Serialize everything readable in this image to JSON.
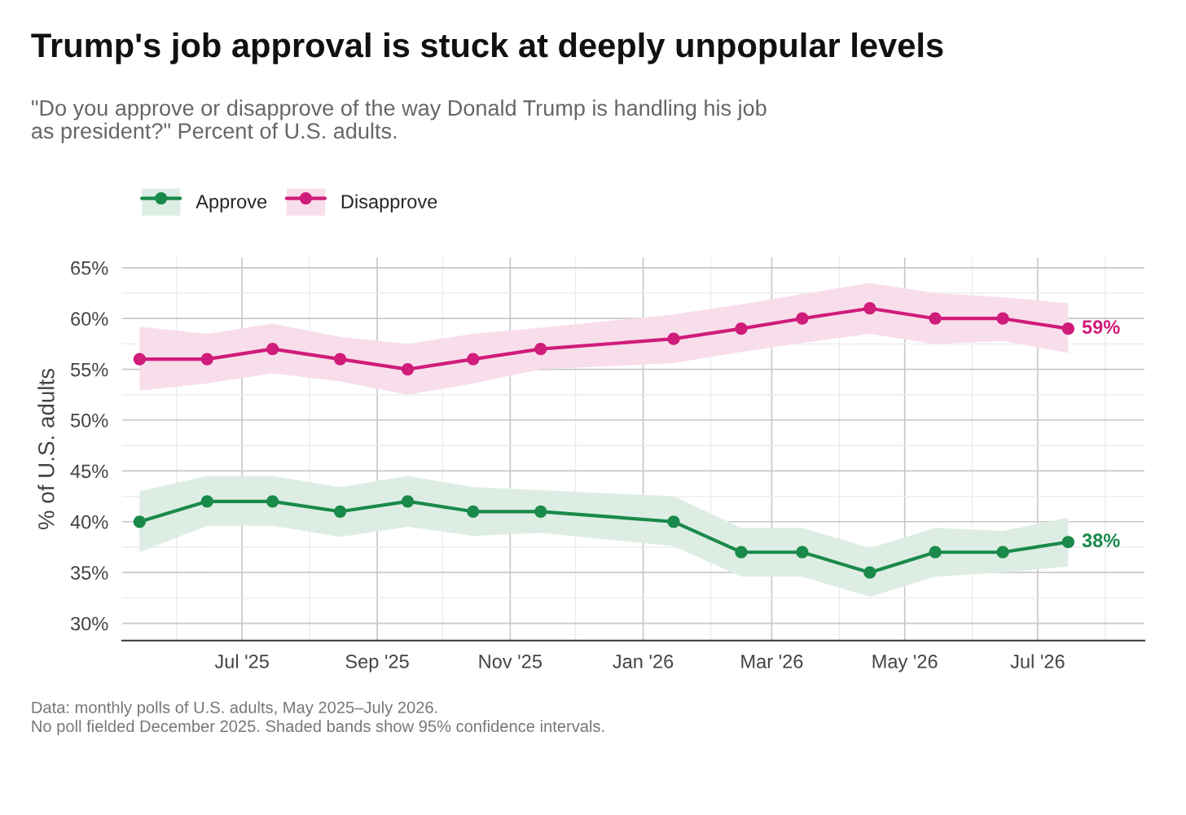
{
  "chart_data": {
    "type": "line",
    "title": "Trump's job approval is stuck at deeply unpopular levels",
    "subtitle": "\"Do you approve or disapprove of the way Donald Trump is handling his job\nas president?\" Percent of U.S. adults.",
    "ylabel": "% of U.S. adults",
    "x": [
      "2025-05-15",
      "2025-06-15",
      "2025-07-15",
      "2025-08-15",
      "2025-09-15",
      "2025-10-15",
      "2025-11-15",
      "2026-01-15",
      "2026-02-15",
      "2026-03-15",
      "2026-04-15",
      "2026-05-15",
      "2026-06-15",
      "2026-07-15"
    ],
    "series": [
      {
        "name": "Approve",
        "color": "#1a8a4a",
        "values": [
          40,
          42,
          42,
          41,
          42,
          41,
          41,
          40,
          37,
          37,
          35,
          37,
          37,
          38
        ],
        "lower": [
          37.0,
          39.6,
          39.6,
          38.5,
          39.5,
          38.6,
          38.9,
          37.6,
          34.6,
          34.6,
          32.6,
          34.6,
          35.0,
          35.6
        ],
        "upper": [
          43.0,
          44.5,
          44.5,
          43.4,
          44.5,
          43.4,
          43.1,
          42.5,
          39.4,
          39.4,
          37.4,
          39.4,
          39.1,
          40.4
        ],
        "value_labels": [
          null,
          null,
          null,
          null,
          null,
          null,
          null,
          null,
          null,
          null,
          null,
          null,
          null,
          "38%"
        ]
      },
      {
        "name": "Disapprove",
        "color": "#d01c7b",
        "values": [
          56,
          56,
          57,
          56,
          55,
          56,
          57,
          58,
          59,
          60,
          61,
          60,
          60,
          59
        ],
        "lower": [
          52.9,
          53.6,
          54.6,
          53.8,
          52.5,
          53.6,
          55.0,
          55.6,
          56.7,
          57.6,
          58.5,
          57.5,
          57.8,
          56.6
        ],
        "upper": [
          59.2,
          58.5,
          59.5,
          58.2,
          57.5,
          58.5,
          59.1,
          60.4,
          61.4,
          62.4,
          63.5,
          62.5,
          62.1,
          61.5
        ],
        "value_labels": [
          null,
          null,
          null,
          null,
          null,
          null,
          null,
          null,
          null,
          null,
          null,
          null,
          null,
          "59%"
        ]
      }
    ],
    "xlim": [
      "2025-05-07",
      "2026-08-19"
    ],
    "xticks": [
      {
        "value": "2025-06-01",
        "label": null
      },
      {
        "value": "2025-07-01",
        "label": "Jul '25"
      },
      {
        "value": "2025-08-01",
        "label": null
      },
      {
        "value": "2025-09-01",
        "label": "Sep '25"
      },
      {
        "value": "2025-10-01",
        "label": null
      },
      {
        "value": "2025-11-01",
        "label": "Nov '25"
      },
      {
        "value": "2025-12-01",
        "label": null
      },
      {
        "value": "2026-01-01",
        "label": "Jan '26"
      },
      {
        "value": "2026-02-01",
        "label": null
      },
      {
        "value": "2026-03-01",
        "label": "Mar '26"
      },
      {
        "value": "2026-04-01",
        "label": null
      },
      {
        "value": "2026-05-01",
        "label": "May '26"
      },
      {
        "value": "2026-06-01",
        "label": null
      },
      {
        "value": "2026-07-01",
        "label": "Jul '26"
      },
      {
        "value": "2026-08-01",
        "label": null
      }
    ],
    "ylim": [
      28.3,
      66
    ],
    "yticks": [
      {
        "value": 30,
        "label": "30%"
      },
      {
        "value": 32.5,
        "label": null
      },
      {
        "value": 35,
        "label": "35%"
      },
      {
        "value": 37.5,
        "label": null
      },
      {
        "value": 40,
        "label": "40%"
      },
      {
        "value": 42.5,
        "label": null
      },
      {
        "value": 45,
        "label": "45%"
      },
      {
        "value": 47.5,
        "label": null
      },
      {
        "value": 50,
        "label": "50%"
      },
      {
        "value": 52.5,
        "label": null
      },
      {
        "value": 55,
        "label": "55%"
      },
      {
        "value": 57.5,
        "label": null
      },
      {
        "value": 60,
        "label": "60%"
      },
      {
        "value": 62.5,
        "label": null
      },
      {
        "value": 65,
        "label": "65%"
      }
    ],
    "grid": true,
    "legend": "top left",
    "marker": "circle",
    "line_style": "solid",
    "annotations": [
      "Data: monthly polls of U.S. adults, May 2025–July 2026.\nNo poll fielded December 2025. Shaded bands show 95% confidence intervals."
    ]
  }
}
